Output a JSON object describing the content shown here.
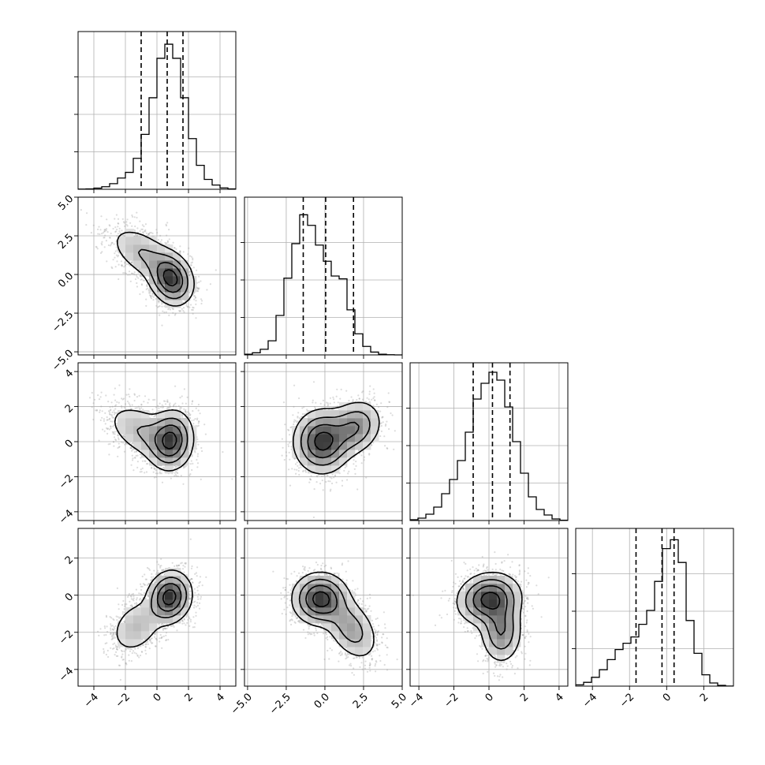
{
  "chart_data": {
    "type": "corner",
    "parameters": [
      {
        "range": [
          -5,
          5
        ],
        "ticks": [
          -4,
          -2,
          0,
          2,
          4
        ],
        "tick_labels": [
          "−4",
          "−2",
          "0",
          "2",
          "4"
        ]
      },
      {
        "range": [
          -5.2,
          5.0
        ],
        "ticks": [
          -5.0,
          -2.5,
          0.0,
          2.5,
          5.0
        ],
        "tick_labels": [
          "−5.0",
          "−2.5",
          "0.0",
          "2.5",
          "5.0"
        ]
      },
      {
        "range": [
          -4.5,
          4.5
        ],
        "ticks": [
          -4,
          -2,
          0,
          2,
          4
        ],
        "tick_labels": [
          "−4",
          "−2",
          "0",
          "2",
          "4"
        ]
      },
      {
        "range": [
          -4.9,
          3.6
        ],
        "ticks": [
          -4,
          -2,
          0,
          2
        ],
        "tick_labels": [
          "−4",
          "−2",
          "0",
          "2"
        ]
      }
    ],
    "grid": true,
    "histograms": [
      {
        "bin_edges": [
          -5.0,
          -4.5,
          -4.0,
          -3.5,
          -3.0,
          -2.5,
          -2.0,
          -1.5,
          -1.0,
          -0.5,
          0.0,
          0.5,
          1.0,
          1.5,
          2.0,
          2.5,
          3.0,
          3.5,
          4.0,
          4.5,
          5.0
        ],
        "counts": [
          1,
          3,
          8,
          18,
          40,
          80,
          120,
          220,
          390,
          650,
          930,
          1030,
          930,
          650,
          360,
          170,
          70,
          30,
          10,
          3
        ],
        "quantiles": [
          -1.0,
          0.65,
          1.65
        ],
        "ylim": [
          0,
          1120
        ]
      },
      {
        "bin_edges": [
          -5.2,
          -4.69,
          -4.18,
          -3.67,
          -3.16,
          -2.65,
          -2.14,
          -1.63,
          -1.12,
          -0.61,
          -0.1,
          0.41,
          0.92,
          1.43,
          1.94,
          2.45,
          2.96,
          3.47,
          3.98,
          4.49,
          5.0
        ],
        "counts": [
          5,
          15,
          40,
          100,
          280,
          545,
          790,
          995,
          920,
          780,
          665,
          560,
          540,
          320,
          150,
          60,
          20,
          5,
          1,
          0
        ],
        "quantiles": [
          -1.4,
          0.05,
          1.85
        ],
        "ylim": [
          0,
          1120
        ]
      },
      {
        "bin_edges": [
          -4.5,
          -4.05,
          -3.6,
          -3.15,
          -2.7,
          -2.25,
          -1.8,
          -1.35,
          -0.9,
          -0.45,
          0.0,
          0.45,
          0.9,
          1.35,
          1.8,
          2.25,
          2.7,
          3.15,
          3.6,
          4.05,
          4.5
        ],
        "counts": [
          5,
          15,
          40,
          85,
          170,
          260,
          380,
          560,
          770,
          870,
          940,
          890,
          720,
          500,
          300,
          150,
          70,
          35,
          10,
          2
        ],
        "quantiles": [
          -0.9,
          0.2,
          1.2
        ],
        "ylim": [
          0,
          1000
        ]
      },
      {
        "bin_edges": [
          -4.9,
          -4.475,
          -4.05,
          -3.625,
          -3.2,
          -2.775,
          -2.35,
          -1.925,
          -1.5,
          -1.075,
          -0.65,
          -0.225,
          0.2,
          0.625,
          1.05,
          1.475,
          1.9,
          2.325,
          2.75,
          3.175,
          3.6
        ],
        "counts": [
          10,
          30,
          70,
          130,
          210,
          290,
          340,
          390,
          490,
          600,
          830,
          1090,
          1160,
          980,
          520,
          260,
          90,
          25,
          6,
          1
        ],
        "quantiles": [
          -1.65,
          -0.25,
          0.4
        ],
        "ylim": [
          0,
          1250
        ]
      }
    ],
    "density_2d": [
      {
        "xi": 0,
        "yi": 1,
        "components": [
          {
            "w": 0.62,
            "mx": 0.9,
            "my": -0.3,
            "sx": 0.7,
            "sy": 0.85,
            "r": -0.2
          },
          {
            "w": 0.38,
            "mx": -0.8,
            "my": 1.3,
            "sx": 1.2,
            "sy": 1.0,
            "r": -0.55
          }
        ]
      },
      {
        "xi": 0,
        "yi": 2,
        "components": [
          {
            "w": 0.6,
            "mx": 0.9,
            "my": 0.1,
            "sx": 0.7,
            "sy": 0.85,
            "r": 0.1
          },
          {
            "w": 0.4,
            "mx": -0.8,
            "my": 0.5,
            "sx": 1.3,
            "sy": 0.9,
            "r": -0.5
          }
        ]
      },
      {
        "xi": 1,
        "yi": 2,
        "components": [
          {
            "w": 0.65,
            "mx": -0.2,
            "my": 0.0,
            "sx": 0.9,
            "sy": 0.9,
            "r": 0.0
          },
          {
            "w": 0.35,
            "mx": 1.9,
            "my": 0.8,
            "sx": 0.9,
            "sy": 0.8,
            "r": 0.2
          }
        ]
      },
      {
        "xi": 0,
        "yi": 3,
        "components": [
          {
            "w": 0.7,
            "mx": 0.8,
            "my": -0.1,
            "sx": 0.7,
            "sy": 0.7,
            "r": 0.1
          },
          {
            "w": 0.3,
            "mx": -1.3,
            "my": -1.7,
            "sx": 0.9,
            "sy": 0.8,
            "r": 0.3
          }
        ]
      },
      {
        "xi": 1,
        "yi": 3,
        "components": [
          {
            "w": 0.65,
            "mx": -0.3,
            "my": -0.2,
            "sx": 0.9,
            "sy": 0.7,
            "r": 0.0
          },
          {
            "w": 0.35,
            "mx": 1.7,
            "my": -1.8,
            "sx": 0.9,
            "sy": 0.9,
            "r": -0.4
          }
        ]
      },
      {
        "xi": 2,
        "yi": 3,
        "components": [
          {
            "w": 0.65,
            "mx": 0.0,
            "my": -0.2,
            "sx": 0.9,
            "sy": 0.7,
            "r": 0.1
          },
          {
            "w": 0.35,
            "mx": 0.7,
            "my": -1.9,
            "sx": 0.6,
            "sy": 0.9,
            "r": 0.0
          }
        ]
      }
    ],
    "contour_levels_fraction_of_peak": [
      0.12,
      0.32,
      0.58,
      0.85
    ],
    "scatter_points_per_panel": 2500
  }
}
